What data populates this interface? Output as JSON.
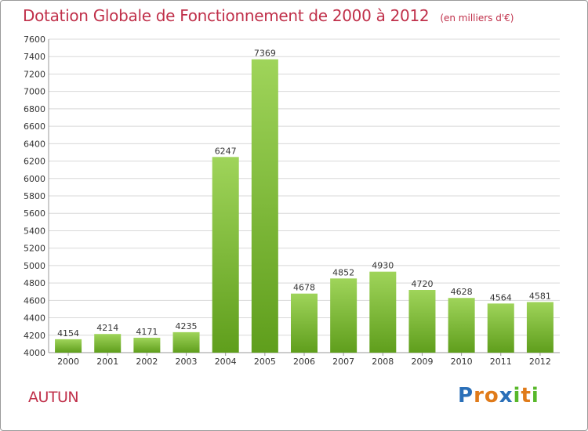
{
  "title": "Dotation Globale de Fonctionnement de 2000 à 2012",
  "unit_label": "(en milliers d'€)",
  "commune": "AUTUN",
  "logo": {
    "letters": [
      "P",
      "r",
      "o",
      "x",
      "i",
      "t",
      "i"
    ],
    "colors": [
      "#2a6fb8",
      "#e07b1a",
      "#e07b1a",
      "#2a6fb8",
      "#58b82a",
      "#e07b1a",
      "#58b82a"
    ]
  },
  "colors": {
    "title": "#c0304a",
    "bar_light": "#9fd45a",
    "bar_dark": "#5f9e1c",
    "grid": "#d8d8d8"
  },
  "chart_data": {
    "type": "bar",
    "categories": [
      "2000",
      "2001",
      "2002",
      "2003",
      "2004",
      "2005",
      "2006",
      "2007",
      "2008",
      "2009",
      "2010",
      "2011",
      "2012"
    ],
    "values": [
      4154,
      4214,
      4171,
      4235,
      6247,
      7369,
      4678,
      4852,
      4930,
      4720,
      4628,
      4564,
      4581
    ],
    "ylim": [
      4000,
      7600
    ],
    "yticks": [
      4000,
      4200,
      4400,
      4600,
      4800,
      5000,
      5200,
      5400,
      5600,
      5800,
      6000,
      6200,
      6400,
      6600,
      6800,
      7000,
      7200,
      7400,
      7600
    ],
    "grid": true
  }
}
